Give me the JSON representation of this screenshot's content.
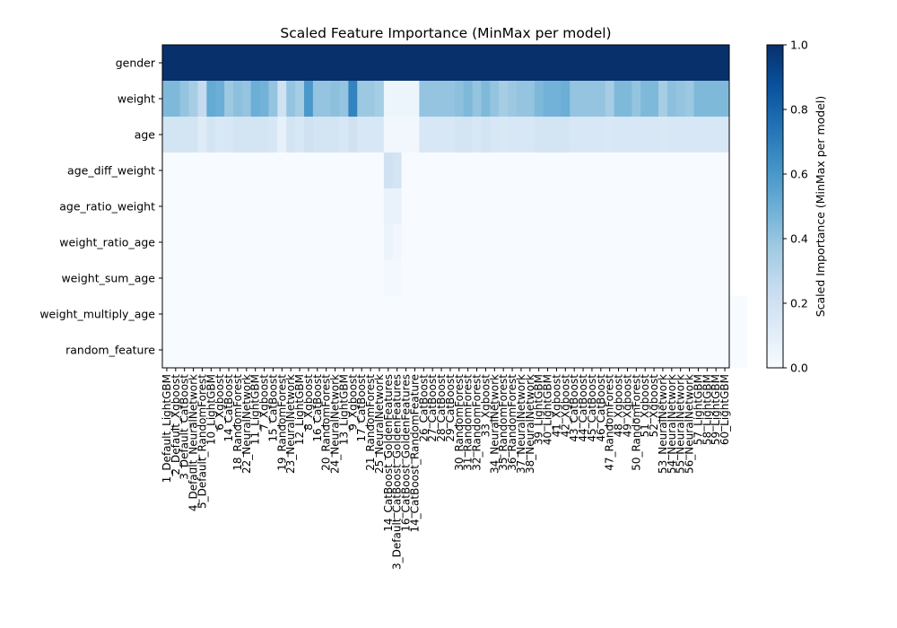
{
  "chart_data": {
    "type": "heatmap",
    "title": "Scaled Feature Importance (MinMax per model)",
    "xlabel": "",
    "ylabel": "",
    "features": [
      "gender",
      "weight",
      "age",
      "age_diff_weight",
      "age_ratio_weight",
      "weight_ratio_age",
      "weight_sum_age",
      "weight_multiply_age",
      "random_feature"
    ],
    "models": [
      "1_Default_LightGBM",
      "2_Default_Xgboost",
      "3_Default_CatBoost",
      "4_Default_NeuralNetwork",
      "5_Default_RandomForest",
      "10_LightGBM",
      "6_Xgboost",
      "14_CatBoost",
      "18_RandomForest",
      "22_NeuralNetwork",
      "11_LightGBM",
      "7_Xgboost",
      "15_CatBoost",
      "19_RandomForest",
      "23_NeuralNetwork",
      "12_LightGBM",
      "8_Xgboost",
      "16_CatBoost",
      "20_RandomForest",
      "24_NeuralNetwork",
      "13_LightGBM",
      "9_Xgboost",
      "17_CatBoost",
      "21_RandomForest",
      "25_NeuralNetwork",
      "14_CatBoost_GoldenFeatures",
      "3_Default_CatBoost_GoldenFeatures",
      "16_CatBoost_GoldenFeatures",
      "14_CatBoost_RandomFeature",
      "26_CatBoost",
      "27_CatBoost",
      "28_CatBoost",
      "29_CatBoost",
      "30_RandomForest",
      "31_RandomForest",
      "32_RandomForest",
      "33_Xgboost",
      "34_NeuralNetwork",
      "35_RandomForest",
      "36_RandomForest",
      "37_NeuralNetwork",
      "38_NeuralNetwork",
      "39_LightGBM",
      "40_LightGBM",
      "41_Xgboost",
      "42_Xgboost",
      "43_CatBoost",
      "44_CatBoost",
      "45_CatBoost",
      "46_CatBoost",
      "47_RandomForest",
      "48_Xgboost",
      "49_Xgboost",
      "50_RandomForest",
      "51_Xgboost",
      "52_Xgboost",
      "53_NeuralNetwork",
      "54_NeuralNetwork",
      "55_NeuralNetwork",
      "56_NeuralNetwork",
      "57_LightGBM",
      "58_LightGBM",
      "59_LightGBM",
      "60_LightGBM"
    ],
    "values": [
      [
        1,
        1,
        1,
        1,
        1,
        1,
        1,
        1,
        1,
        1,
        1,
        1,
        1,
        1,
        1,
        1,
        1,
        1,
        1,
        1,
        1,
        1,
        1,
        1,
        1,
        1,
        1,
        1,
        1,
        1,
        1,
        1,
        1,
        1,
        1,
        1,
        1,
        1,
        1,
        1,
        1,
        1,
        1,
        1,
        1,
        1,
        1,
        1,
        1,
        1,
        1,
        1,
        1,
        1,
        1,
        1,
        1,
        1,
        1,
        1,
        1,
        1,
        1,
        1
      ],
      [
        0.45,
        0.45,
        0.4,
        0.35,
        0.25,
        0.52,
        0.5,
        0.38,
        0.42,
        0.4,
        0.5,
        0.48,
        0.4,
        0.2,
        0.4,
        0.35,
        0.6,
        0.4,
        0.4,
        0.42,
        0.4,
        0.68,
        0.38,
        0.38,
        0.35,
        0.05,
        0.05,
        0.05,
        0.05,
        0.4,
        0.4,
        0.4,
        0.4,
        0.42,
        0.45,
        0.4,
        0.45,
        0.4,
        0.35,
        0.38,
        0.4,
        0.4,
        0.45,
        0.48,
        0.48,
        0.5,
        0.4,
        0.4,
        0.4,
        0.4,
        0.35,
        0.45,
        0.45,
        0.4,
        0.45,
        0.45,
        0.35,
        0.42,
        0.4,
        0.38,
        0.45,
        0.45,
        0.45,
        0.45
      ],
      [
        0.18,
        0.18,
        0.18,
        0.18,
        0.12,
        0.18,
        0.15,
        0.16,
        0.18,
        0.18,
        0.18,
        0.18,
        0.16,
        0.08,
        0.18,
        0.16,
        0.2,
        0.18,
        0.18,
        0.18,
        0.16,
        0.2,
        0.16,
        0.16,
        0.16,
        0.03,
        0.03,
        0.03,
        0.03,
        0.16,
        0.16,
        0.16,
        0.16,
        0.18,
        0.18,
        0.16,
        0.18,
        0.16,
        0.15,
        0.16,
        0.16,
        0.16,
        0.18,
        0.18,
        0.18,
        0.18,
        0.16,
        0.16,
        0.16,
        0.16,
        0.15,
        0.16,
        0.16,
        0.16,
        0.16,
        0.16,
        0.15,
        0.16,
        0.16,
        0.16,
        0.16,
        0.16,
        0.16,
        0.16
      ],
      [
        0,
        0,
        0,
        0,
        0,
        0,
        0,
        0,
        0,
        0,
        0,
        0,
        0,
        0,
        0,
        0,
        0,
        0,
        0,
        0,
        0,
        0,
        0,
        0,
        0,
        0.2,
        0.18,
        0,
        0,
        0,
        0,
        0,
        0,
        0,
        0,
        0,
        0,
        0,
        0,
        0,
        0,
        0,
        0,
        0,
        0,
        0,
        0,
        0,
        0,
        0,
        0,
        0,
        0,
        0,
        0,
        0,
        0,
        0,
        0,
        0,
        0,
        0,
        0,
        0
      ],
      [
        0,
        0,
        0,
        0,
        0,
        0,
        0,
        0,
        0,
        0,
        0,
        0,
        0,
        0,
        0,
        0,
        0,
        0,
        0,
        0,
        0,
        0,
        0,
        0,
        0,
        0.07,
        0.07,
        0,
        0,
        0,
        0,
        0,
        0,
        0,
        0,
        0,
        0,
        0,
        0,
        0,
        0,
        0,
        0,
        0,
        0,
        0,
        0,
        0,
        0,
        0,
        0,
        0,
        0,
        0,
        0,
        0,
        0,
        0,
        0,
        0,
        0,
        0,
        0,
        0
      ],
      [
        0,
        0,
        0,
        0,
        0,
        0,
        0,
        0,
        0,
        0,
        0,
        0,
        0,
        0,
        0,
        0,
        0,
        0,
        0,
        0,
        0,
        0,
        0,
        0,
        0,
        0.06,
        0.03,
        0,
        0,
        0,
        0,
        0,
        0,
        0,
        0,
        0,
        0,
        0,
        0,
        0,
        0,
        0,
        0,
        0,
        0,
        0,
        0,
        0,
        0,
        0,
        0,
        0,
        0,
        0,
        0,
        0,
        0,
        0,
        0,
        0,
        0,
        0,
        0,
        0
      ],
      [
        0,
        0,
        0,
        0,
        0,
        0,
        0,
        0,
        0,
        0,
        0,
        0,
        0,
        0,
        0,
        0,
        0,
        0,
        0,
        0,
        0,
        0,
        0,
        0,
        0,
        0.02,
        0.02,
        0,
        0,
        0,
        0,
        0,
        0,
        0,
        0,
        0,
        0,
        0,
        0,
        0,
        0,
        0,
        0,
        0,
        0,
        0,
        0,
        0,
        0,
        0,
        0,
        0,
        0,
        0,
        0,
        0,
        0,
        0,
        0,
        0,
        0,
        0,
        0,
        0
      ],
      [
        0,
        0,
        0,
        0,
        0,
        0,
        0,
        0,
        0,
        0,
        0,
        0,
        0,
        0,
        0,
        0,
        0,
        0,
        0,
        0,
        0,
        0,
        0,
        0,
        0,
        0,
        0,
        0,
        0,
        0,
        0,
        0,
        0,
        0,
        0,
        0,
        0,
        0,
        0,
        0,
        0,
        0,
        0,
        0,
        0,
        0,
        0,
        0,
        0,
        0,
        0,
        0,
        0,
        0,
        0,
        0,
        0,
        0,
        0,
        0,
        0,
        0,
        0,
        0,
        0,
        0
      ],
      [
        0,
        0,
        0,
        0,
        0,
        0,
        0,
        0,
        0,
        0,
        0,
        0,
        0,
        0,
        0,
        0,
        0,
        0,
        0,
        0,
        0,
        0,
        0,
        0,
        0,
        0,
        0,
        0,
        0,
        0,
        0,
        0,
        0,
        0,
        0,
        0,
        0,
        0,
        0,
        0,
        0,
        0,
        0,
        0,
        0,
        0,
        0,
        0,
        0,
        0,
        0,
        0,
        0,
        0,
        0,
        0,
        0,
        0,
        0,
        0,
        0,
        0,
        0,
        0,
        0,
        0
      ]
    ],
    "colorscale": "Blues",
    "colorbar": {
      "label": "Scaled Importance (MinMax per model)",
      "range": [
        0,
        1
      ],
      "ticks": [
        "0.0",
        "0.2",
        "0.4",
        "0.6",
        "0.8",
        "1.0"
      ]
    }
  }
}
